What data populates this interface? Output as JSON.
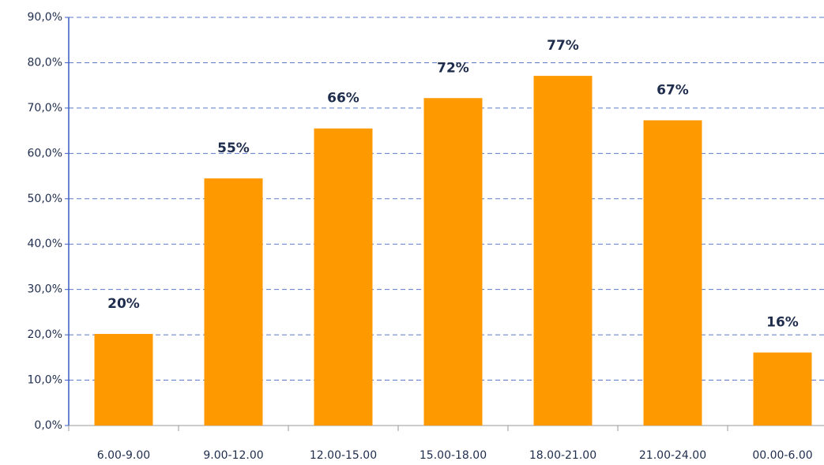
{
  "chart_data": {
    "type": "bar",
    "categories": [
      "6.00-9.00",
      "9.00-12.00",
      "12.00-15.00",
      "15.00-18.00",
      "18.00-21.00",
      "21.00-24.00",
      "00.00-6.00"
    ],
    "values": [
      20.2,
      54.5,
      65.5,
      72.2,
      77.1,
      67.3,
      16.1
    ],
    "value_labels": [
      "20%",
      "55%",
      "66%",
      "72%",
      "77%",
      "67%",
      "16%"
    ],
    "color": "#ff9900",
    "ylim": [
      0,
      90
    ],
    "yticks": [
      {
        "value": 0,
        "label": "0,0%"
      },
      {
        "value": 10,
        "label": "10,0%"
      },
      {
        "value": 20,
        "label": "20,0%"
      },
      {
        "value": 30,
        "label": "30,0%"
      },
      {
        "value": 40,
        "label": "40,0%"
      },
      {
        "value": 50,
        "label": "50,0%"
      },
      {
        "value": 60,
        "label": "60,0%"
      },
      {
        "value": 70,
        "label": "70,0%"
      },
      {
        "value": 80,
        "label": "80,0%"
      },
      {
        "value": 90,
        "label": "90,0%"
      }
    ],
    "grid": true
  }
}
